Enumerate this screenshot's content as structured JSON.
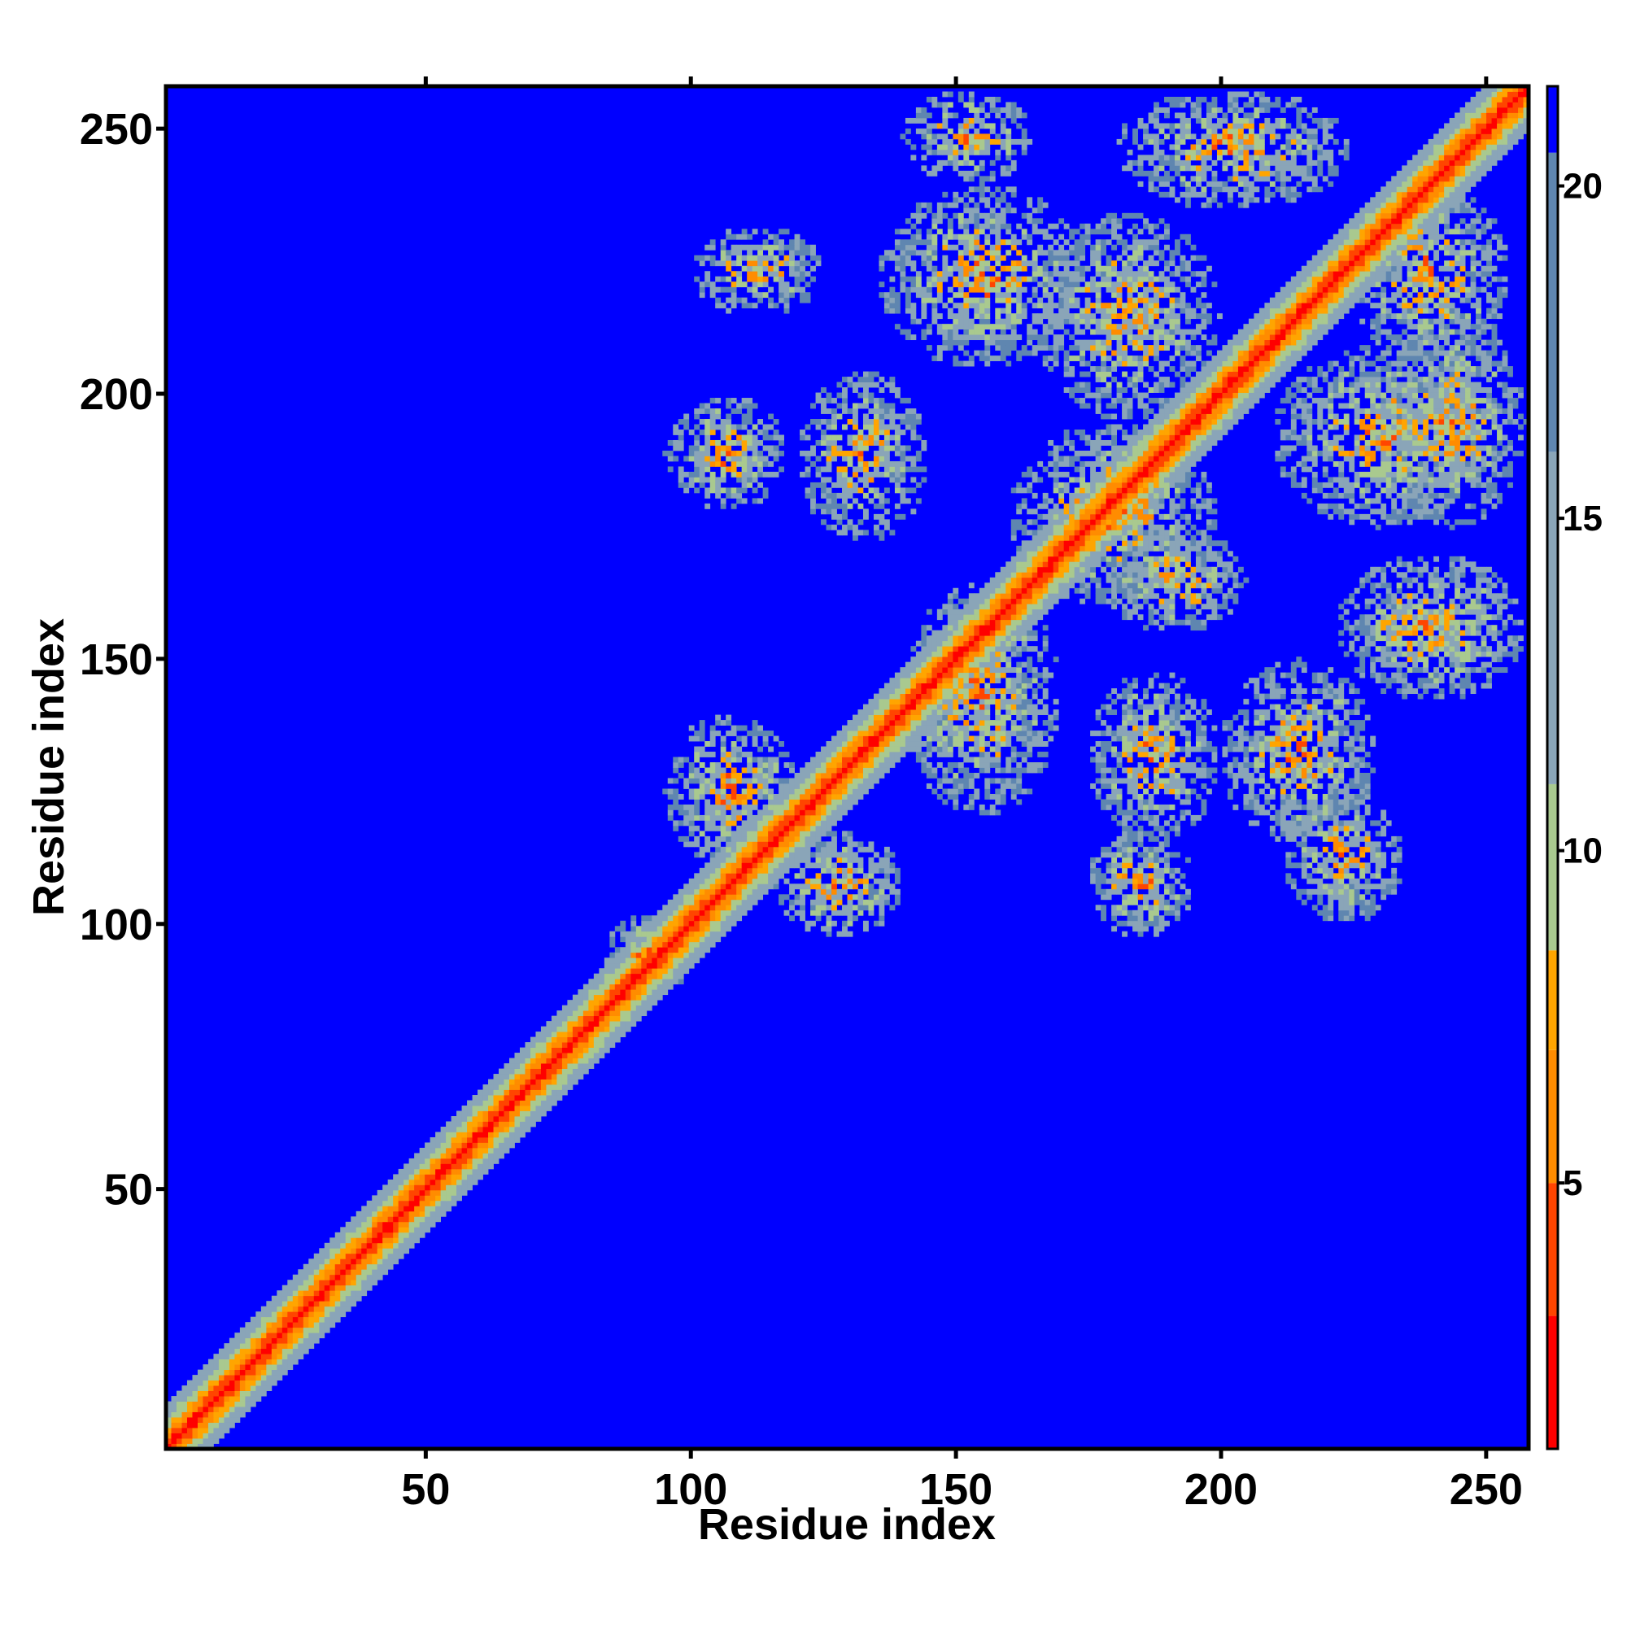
{
  "chart_data": {
    "type": "heatmap",
    "title": "",
    "xlabel": "Residue index",
    "ylabel": "Residue index",
    "n_residues": 258,
    "xlim": [
      1,
      258
    ],
    "ylim": [
      1,
      258
    ],
    "x_ticks": [
      50,
      100,
      150,
      200,
      250
    ],
    "y_ticks": [
      50,
      100,
      150,
      200,
      250
    ],
    "colorbar": {
      "ticks": [
        5,
        10,
        15,
        20
      ],
      "range": [
        1,
        21.5
      ],
      "colors": {
        "red": "#ff0000",
        "orange_red": "#ff4500",
        "orange": "#ff8c00",
        "gold": "#ffa500",
        "sage": "#a9c98f",
        "gray_blue": "#8aa5b8",
        "steel_blue": "#5f86b0",
        "blue": "#0000ff"
      },
      "bands": [
        {
          "from": 1,
          "to": 3,
          "color": "#ff0000"
        },
        {
          "from": 3,
          "to": 5,
          "color": "#ff4500"
        },
        {
          "from": 5,
          "to": 7,
          "color": "#ff8c00"
        },
        {
          "from": 7,
          "to": 8.5,
          "color": "#ffa500"
        },
        {
          "from": 8.5,
          "to": 11,
          "color": "#a9c98f"
        },
        {
          "from": 11,
          "to": 16,
          "color": "#8aa5b8"
        },
        {
          "from": 16,
          "to": 20.5,
          "color": "#5f86b0"
        },
        {
          "from": 20.5,
          "to": 21.5,
          "color": "#0000ff"
        }
      ]
    },
    "diagonal": {
      "from": 1,
      "to": 258
    },
    "contact_regions": [
      {
        "x": [
          140,
          165
        ],
        "y": [
          240,
          258
        ]
      },
      {
        "x": [
          180,
          225
        ],
        "y": [
          235,
          258
        ]
      },
      {
        "x": [
          225,
          255
        ],
        "y": [
          205,
          240
        ]
      },
      {
        "x": [
          100,
          125
        ],
        "y": [
          215,
          232
        ]
      },
      {
        "x": [
          135,
          175
        ],
        "y": [
          205,
          240
        ]
      },
      {
        "x": [
          165,
          200
        ],
        "y": [
          195,
          235
        ]
      },
      {
        "x": [
          160,
          200
        ],
        "y": [
          160,
          195
        ]
      },
      {
        "x": [
          210,
          250
        ],
        "y": [
          175,
          210
        ]
      },
      {
        "x": [
          230,
          258
        ],
        "y": [
          175,
          215
        ]
      },
      {
        "x": [
          95,
          118
        ],
        "y": [
          178,
          200
        ]
      },
      {
        "x": [
          120,
          145
        ],
        "y": [
          172,
          205
        ]
      },
      {
        "x": [
          140,
          170
        ],
        "y": [
          120,
          165
        ]
      },
      {
        "x": [
          178,
          205
        ],
        "y": [
          155,
          175
        ]
      },
      {
        "x": [
          222,
          258
        ],
        "y": [
          142,
          170
        ]
      },
      {
        "x": [
          175,
          200
        ],
        "y": [
          115,
          148
        ]
      },
      {
        "x": [
          200,
          230
        ],
        "y": [
          115,
          150
        ]
      },
      {
        "x": [
          95,
          120
        ],
        "y": [
          110,
          140
        ]
      },
      {
        "x": [
          115,
          140
        ],
        "y": [
          97,
          118
        ]
      },
      {
        "x": [
          175,
          195
        ],
        "y": [
          97,
          118
        ]
      },
      {
        "x": [
          212,
          235
        ],
        "y": [
          100,
          125
        ]
      },
      {
        "x": [
          83,
          100
        ],
        "y": [
          85,
          102
        ]
      }
    ]
  }
}
